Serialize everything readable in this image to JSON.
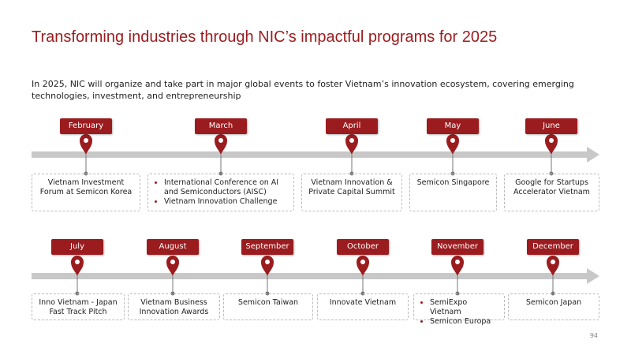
{
  "title": "Transforming industries through NIC’s impactful programs for 2025",
  "subtitle": "In 2025, NIC will organize and take part in major global events to foster Vietnam’s innovation ecosystem, covering emerging technologies, investment, and entrepreneurship",
  "rows": [
    {
      "events": [
        {
          "month": "February",
          "text": "Vietnam Investment Forum at Semicon Korea"
        },
        {
          "month": "March",
          "bullets": [
            "International Conference on AI and Semiconductors (AISC)",
            "Vietnam Innovation Challenge"
          ]
        },
        {
          "month": "April",
          "text": "Vietnam Innovation & Private Capital Summit"
        },
        {
          "month": "May",
          "text": "Semicon Singapore"
        },
        {
          "month": "June",
          "text": "Google for Startups Accelerator Vietnam"
        }
      ]
    },
    {
      "events": [
        {
          "month": "July",
          "text": "Inno Vietnam - Japan Fast Track Pitch"
        },
        {
          "month": "August",
          "text": "Vietnam Business Innovation Awards"
        },
        {
          "month": "September",
          "text": "Semicon Taiwan"
        },
        {
          "month": "October",
          "text": "Innovate Vietnam"
        },
        {
          "month": "November",
          "bullets": [
            "SemiExpo Vietnam",
            "Semicon Europa"
          ]
        },
        {
          "month": "December",
          "text": "Semicon Japan"
        }
      ]
    }
  ],
  "page_number": "94"
}
